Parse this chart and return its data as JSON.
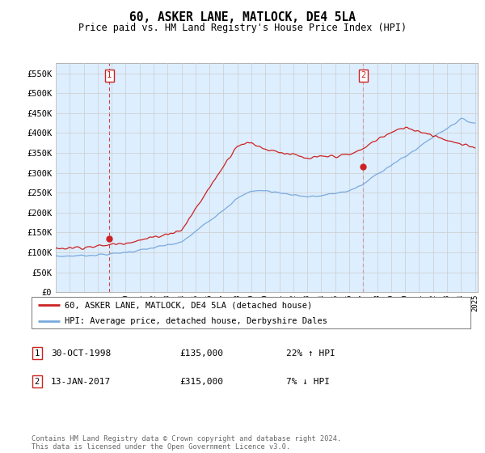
{
  "title": "60, ASKER LANE, MATLOCK, DE4 5LA",
  "subtitle": "Price paid vs. HM Land Registry's House Price Index (HPI)",
  "ylabel_ticks": [
    "£0",
    "£50K",
    "£100K",
    "£150K",
    "£200K",
    "£250K",
    "£300K",
    "£350K",
    "£400K",
    "£450K",
    "£500K",
    "£550K"
  ],
  "ytick_vals": [
    0,
    50000,
    100000,
    150000,
    200000,
    250000,
    300000,
    350000,
    400000,
    450000,
    500000,
    550000
  ],
  "ylim": [
    0,
    575000
  ],
  "xlim_start": 1995.0,
  "xlim_end": 2025.2,
  "sale1_x": 1998.833,
  "sale1_price": 135000,
  "sale2_x": 2017.0,
  "sale2_price": 315000,
  "legend_line1": "60, ASKER LANE, MATLOCK, DE4 5LA (detached house)",
  "legend_line2": "HPI: Average price, detached house, Derbyshire Dales",
  "table_row1": [
    "1",
    "30-OCT-1998",
    "£135,000",
    "22% ↑ HPI"
  ],
  "table_row2": [
    "2",
    "13-JAN-2017",
    "£315,000",
    "7% ↓ HPI"
  ],
  "footer": "Contains HM Land Registry data © Crown copyright and database right 2024.\nThis data is licensed under the Open Government Licence v3.0.",
  "red_line_color": "#cc2222",
  "blue_line_color": "#7aaadd",
  "vline_color": "#cc2222",
  "grid_color": "#cccccc",
  "plot_bg_color": "#ddeeff",
  "background_color": "#ffffff"
}
